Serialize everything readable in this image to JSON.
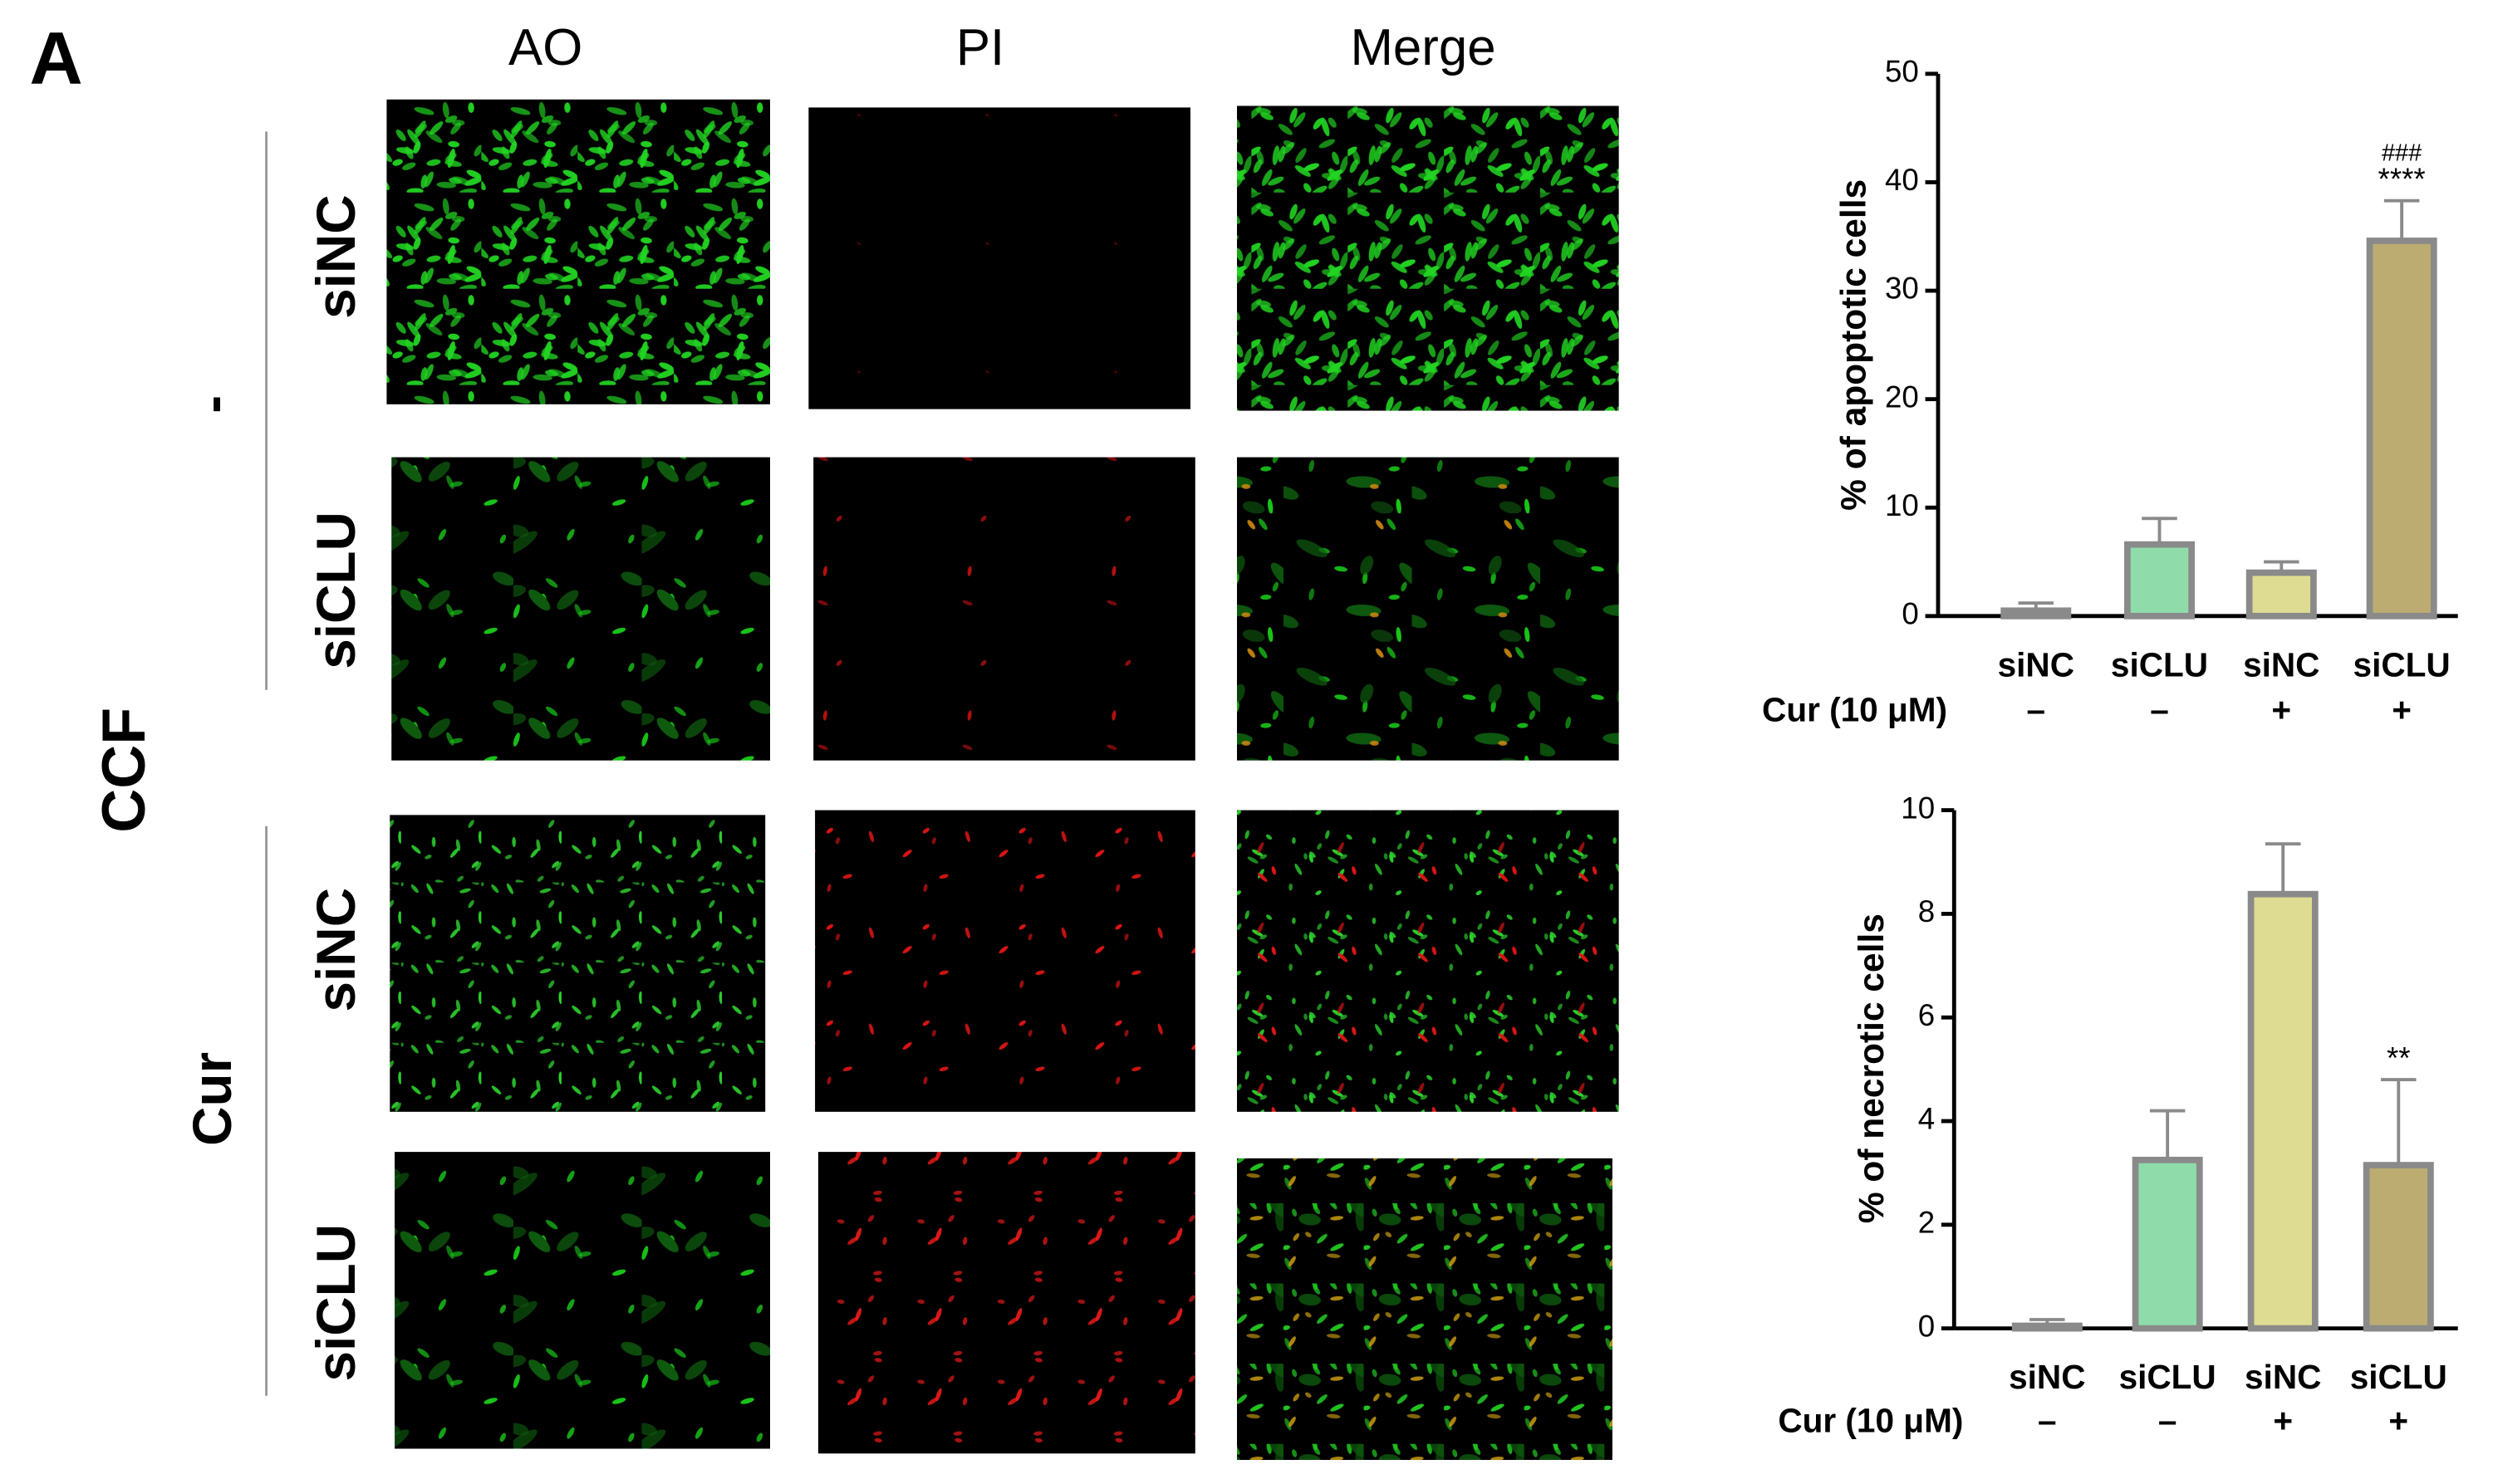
{
  "panel": "A",
  "columns": [
    "AO",
    "PI",
    "Merge"
  ],
  "rows": [
    "siNC",
    "siCLU",
    "siNC",
    "siCLU"
  ],
  "groups": [
    "-",
    "Cur"
  ],
  "group_title": "CCF",
  "chart_data": [
    {
      "type": "bar",
      "y_label": "% of apoptotic cells",
      "categories": [
        "siNC",
        "siCLU",
        "siNC",
        "siCLU"
      ],
      "treatment_label": "Cur (10 μM)",
      "treatment": [
        "–",
        "–",
        "+",
        "+"
      ],
      "values": [
        0.5,
        6.6,
        4.0,
        34.6
      ],
      "errors": [
        0.7,
        2.4,
        1.0,
        3.7
      ],
      "colors": [
        "#c8c8c8",
        "#8fdcaa",
        "#dedc93",
        "#bcac72"
      ],
      "significance": [
        null,
        null,
        null,
        "****"
      ],
      "significance_2": [
        null,
        null,
        null,
        "###"
      ],
      "ylim": [
        0,
        50
      ],
      "yticks": [
        0,
        10,
        20,
        30,
        40,
        50
      ]
    },
    {
      "type": "bar",
      "y_label": "% of necrotic cells",
      "categories": [
        "siNC",
        "siCLU",
        "siNC",
        "siCLU"
      ],
      "treatment_label": "Cur (10 μM)",
      "treatment": [
        "–",
        "–",
        "+",
        "+"
      ],
      "values": [
        0.05,
        3.25,
        8.38,
        3.15
      ],
      "errors": [
        0.12,
        0.95,
        0.97,
        1.65
      ],
      "colors": [
        "#c8c8c8",
        "#8fdcaa",
        "#dedc93",
        "#bcac72"
      ],
      "significance": [
        null,
        null,
        null,
        "**"
      ],
      "ylim": [
        0,
        10
      ],
      "yticks": [
        0,
        2,
        4,
        6,
        8,
        10
      ]
    }
  ]
}
